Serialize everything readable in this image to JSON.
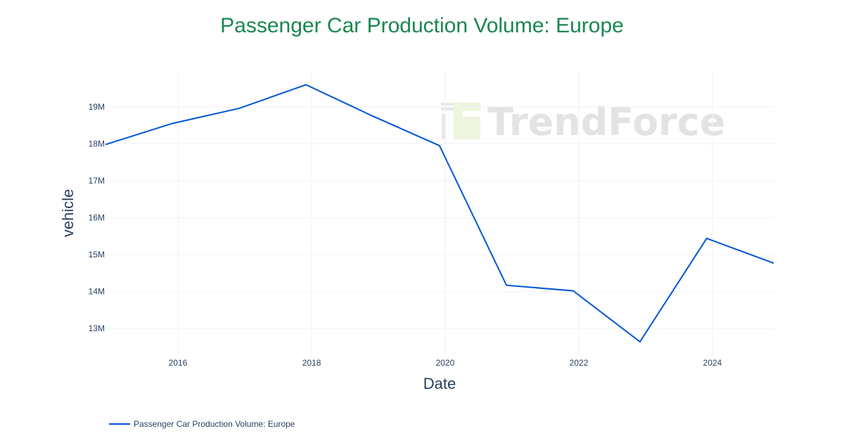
{
  "chart_data": {
    "type": "line",
    "title": "Passenger Car Production Volume: Europe",
    "xlabel": "Date",
    "ylabel": "vehicle",
    "x": [
      "2014-12-01",
      "2015-12-01",
      "2016-12-01",
      "2017-12-01",
      "2018-12-01",
      "2019-12-01",
      "2020-12-01",
      "2021-12-01",
      "2022-12-01",
      "2023-12-01",
      "2024-12-01"
    ],
    "series": [
      {
        "name": "Passenger Car Production Volume: Europe",
        "color": "#0055d4",
        "values": [
          17980000,
          18550000,
          18960000,
          19600000,
          18750000,
          17950000,
          14170000,
          14020000,
          12640000,
          15440000,
          14770000
        ]
      }
    ],
    "xlim": [
      "2014-12-01",
      "2024-12-01"
    ],
    "ylim": [
      12280000,
      19990000
    ],
    "xticks": [
      "2016",
      "2018",
      "2020",
      "2022",
      "2024"
    ],
    "yticks": [
      {
        "v": 13000000,
        "label": "13M"
      },
      {
        "v": 14000000,
        "label": "14M"
      },
      {
        "v": 15000000,
        "label": "15M"
      },
      {
        "v": 16000000,
        "label": "16M"
      },
      {
        "v": 17000000,
        "label": "17M"
      },
      {
        "v": 18000000,
        "label": "18M"
      },
      {
        "v": 19000000,
        "label": "19M"
      }
    ],
    "grid": true,
    "legend": "bottom-left",
    "title_color": "#1a8650"
  },
  "watermark": {
    "text": "TrendForce"
  }
}
